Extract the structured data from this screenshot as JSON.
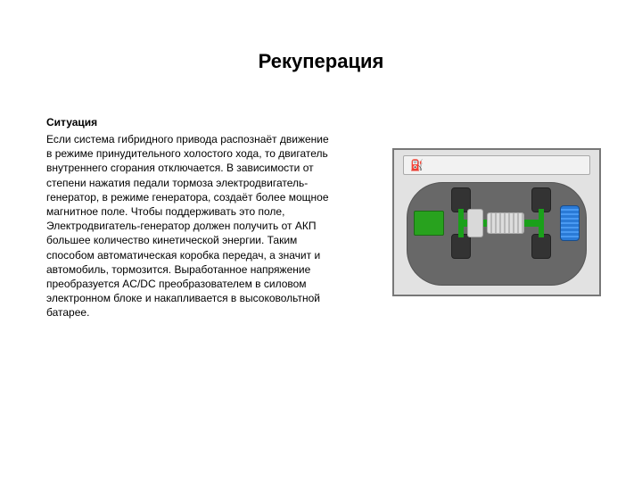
{
  "page": {
    "title": "Рекуперация",
    "subtitle": "Ситуация",
    "paragraph": "Если система гибридного привода распознаёт движение в режиме принудительного холостого хода, то двигатель внутреннего сгорания отключается. В зависимости от степени нажатия педали тормоза электродвигатель-генератор, в режиме генератора, создаёт более мощное магнитное поле. Чтобы поддерживать это поле, Электродвигатель-генератор должен получить от АКП большее количество кинетической энергии. Таким способом автоматическая коробка передач, а значит и автомобиль, тормозится. Выработанное напряжение преобразуется AC/DC преобразователем в силовом электронном блоке и накапливается в высоковольтной батарее."
  },
  "diagram": {
    "type": "infographic",
    "background_color": "#e2e2e2",
    "border_color": "#777777",
    "chassis_color": "#686868",
    "energy_flow_color": "#1aa01a",
    "engine_color": "#28a21e",
    "battery_color": "#2a7ad6",
    "wheel_color": "#333333",
    "motor_color": "#d9d9d9",
    "icons": {
      "fuel": "fuel-pump-icon"
    },
    "components": [
      "engine",
      "gearbox",
      "motor-generator",
      "battery",
      "wheel-fl",
      "wheel-fr",
      "wheel-rl",
      "wheel-rr",
      "drive-shaft"
    ]
  }
}
